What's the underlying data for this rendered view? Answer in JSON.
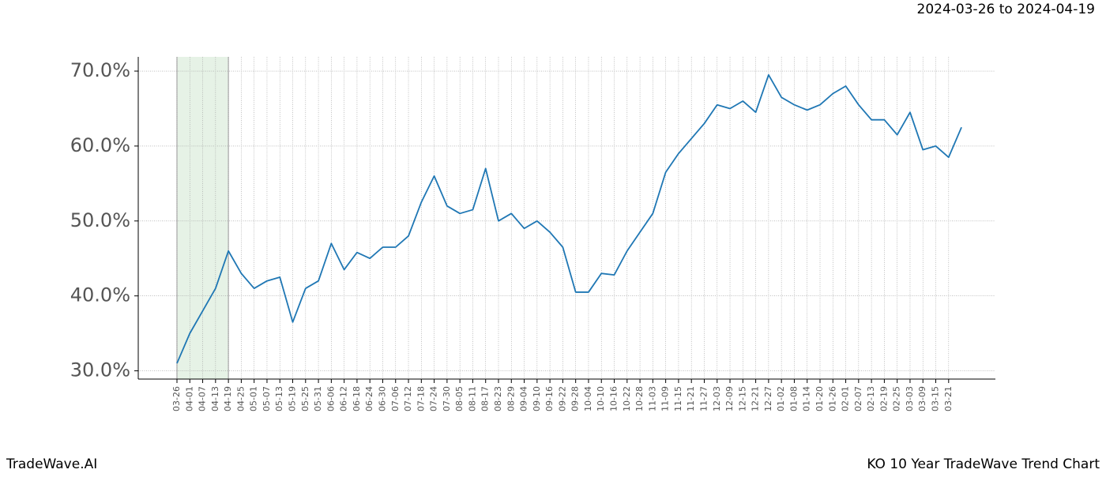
{
  "chart_data": {
    "type": "line",
    "title": "2024-03-26 to 2024-04-19",
    "footer_left": "TradeWave.AI",
    "footer_right": "KO 10 Year TradeWave Trend Chart",
    "categories": [
      "03-26",
      "04-01",
      "04-07",
      "04-13",
      "04-19",
      "04-25",
      "05-01",
      "05-07",
      "05-13",
      "05-19",
      "05-25",
      "05-31",
      "06-06",
      "06-12",
      "06-18",
      "06-24",
      "06-30",
      "07-06",
      "07-12",
      "07-18",
      "07-24",
      "07-30",
      "08-05",
      "08-11",
      "08-17",
      "08-23",
      "08-29",
      "09-04",
      "09-10",
      "09-16",
      "09-22",
      "09-28",
      "10-04",
      "10-10",
      "10-16",
      "10-22",
      "10-28",
      "11-03",
      "11-09",
      "11-15",
      "11-21",
      "11-27",
      "12-03",
      "12-09",
      "12-15",
      "12-21",
      "12-27",
      "01-02",
      "01-08",
      "01-14",
      "01-20",
      "01-26",
      "02-01",
      "02-07",
      "02-13",
      "02-19",
      "02-25",
      "03-03",
      "03-09",
      "03-15",
      "03-21",
      null
    ],
    "series": [
      {
        "color": "#1f77b4",
        "values": [
          31,
          35,
          38,
          41,
          46,
          43,
          41,
          42,
          42.5,
          36.5,
          41,
          42,
          47,
          43.5,
          45.8,
          45,
          46.5,
          46.5,
          48,
          52.5,
          56,
          52,
          51,
          51.5,
          57,
          50,
          51,
          49,
          50,
          48.5,
          46.5,
          40.5,
          40.5,
          43,
          42.8,
          46,
          48.5,
          51,
          56.5,
          59,
          61,
          63,
          65.5,
          65,
          66,
          64.5,
          69.5,
          66.5,
          65.5,
          64.8,
          65.5,
          67,
          68,
          65.5,
          63.5,
          63.5,
          61.5,
          64.5,
          59.5,
          60,
          58.5,
          62.5
        ]
      }
    ],
    "highlight": {
      "start": "03-26",
      "end": "04-19",
      "color": "#e6f2e6"
    },
    "ylim": [
      28.9,
      71.9
    ],
    "yticks": [
      {
        "value": 30,
        "label": "30.0%"
      },
      {
        "value": 40,
        "label": "40.0%"
      },
      {
        "value": 50,
        "label": "50.0%"
      },
      {
        "value": 60,
        "label": "60.0%"
      },
      {
        "value": 70,
        "label": "70.0%"
      }
    ],
    "grid": true
  }
}
